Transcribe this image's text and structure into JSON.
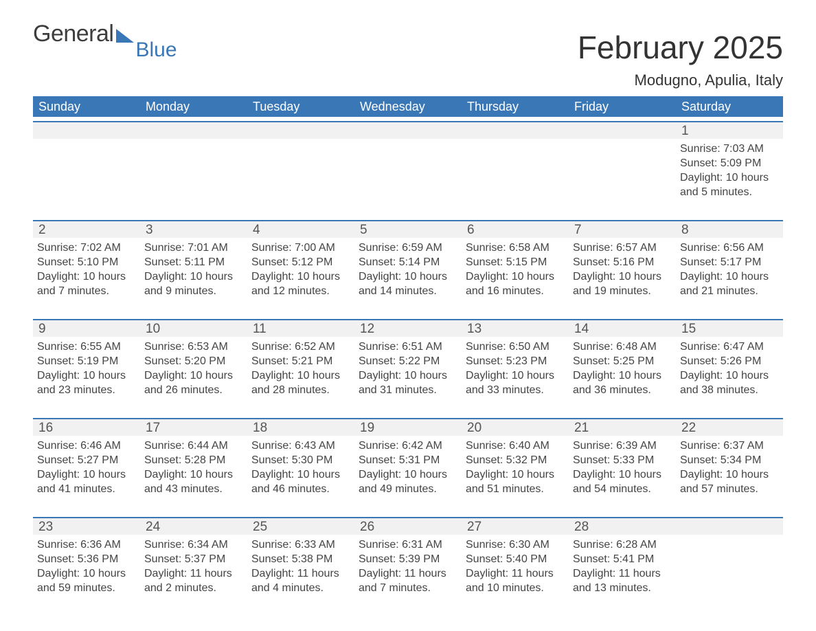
{
  "brand": {
    "part1": "General",
    "part2": "Blue"
  },
  "title": "February 2025",
  "location": "Modugno, Apulia, Italy",
  "colors": {
    "accent": "#3a77b7",
    "header_text": "#ffffff",
    "cell_bg": "#f1f1f1",
    "text": "#333333"
  },
  "typography": {
    "title_fontsize": 46,
    "location_fontsize": 22,
    "dow_fontsize": 18,
    "daynum_fontsize": 19,
    "body_fontsize": 16,
    "font_family": "Arial"
  },
  "calendar": {
    "days_of_week": [
      "Sunday",
      "Monday",
      "Tuesday",
      "Wednesday",
      "Thursday",
      "Friday",
      "Saturday"
    ],
    "start_weekday_index": 6,
    "weeks": [
      [
        null,
        null,
        null,
        null,
        null,
        null,
        {
          "n": "1",
          "sunrise": "7:03 AM",
          "sunset": "5:09 PM",
          "daylight": "10 hours and 5 minutes."
        }
      ],
      [
        {
          "n": "2",
          "sunrise": "7:02 AM",
          "sunset": "5:10 PM",
          "daylight": "10 hours and 7 minutes."
        },
        {
          "n": "3",
          "sunrise": "7:01 AM",
          "sunset": "5:11 PM",
          "daylight": "10 hours and 9 minutes."
        },
        {
          "n": "4",
          "sunrise": "7:00 AM",
          "sunset": "5:12 PM",
          "daylight": "10 hours and 12 minutes."
        },
        {
          "n": "5",
          "sunrise": "6:59 AM",
          "sunset": "5:14 PM",
          "daylight": "10 hours and 14 minutes."
        },
        {
          "n": "6",
          "sunrise": "6:58 AM",
          "sunset": "5:15 PM",
          "daylight": "10 hours and 16 minutes."
        },
        {
          "n": "7",
          "sunrise": "6:57 AM",
          "sunset": "5:16 PM",
          "daylight": "10 hours and 19 minutes."
        },
        {
          "n": "8",
          "sunrise": "6:56 AM",
          "sunset": "5:17 PM",
          "daylight": "10 hours and 21 minutes."
        }
      ],
      [
        {
          "n": "9",
          "sunrise": "6:55 AM",
          "sunset": "5:19 PM",
          "daylight": "10 hours and 23 minutes."
        },
        {
          "n": "10",
          "sunrise": "6:53 AM",
          "sunset": "5:20 PM",
          "daylight": "10 hours and 26 minutes."
        },
        {
          "n": "11",
          "sunrise": "6:52 AM",
          "sunset": "5:21 PM",
          "daylight": "10 hours and 28 minutes."
        },
        {
          "n": "12",
          "sunrise": "6:51 AM",
          "sunset": "5:22 PM",
          "daylight": "10 hours and 31 minutes."
        },
        {
          "n": "13",
          "sunrise": "6:50 AM",
          "sunset": "5:23 PM",
          "daylight": "10 hours and 33 minutes."
        },
        {
          "n": "14",
          "sunrise": "6:48 AM",
          "sunset": "5:25 PM",
          "daylight": "10 hours and 36 minutes."
        },
        {
          "n": "15",
          "sunrise": "6:47 AM",
          "sunset": "5:26 PM",
          "daylight": "10 hours and 38 minutes."
        }
      ],
      [
        {
          "n": "16",
          "sunrise": "6:46 AM",
          "sunset": "5:27 PM",
          "daylight": "10 hours and 41 minutes."
        },
        {
          "n": "17",
          "sunrise": "6:44 AM",
          "sunset": "5:28 PM",
          "daylight": "10 hours and 43 minutes."
        },
        {
          "n": "18",
          "sunrise": "6:43 AM",
          "sunset": "5:30 PM",
          "daylight": "10 hours and 46 minutes."
        },
        {
          "n": "19",
          "sunrise": "6:42 AM",
          "sunset": "5:31 PM",
          "daylight": "10 hours and 49 minutes."
        },
        {
          "n": "20",
          "sunrise": "6:40 AM",
          "sunset": "5:32 PM",
          "daylight": "10 hours and 51 minutes."
        },
        {
          "n": "21",
          "sunrise": "6:39 AM",
          "sunset": "5:33 PM",
          "daylight": "10 hours and 54 minutes."
        },
        {
          "n": "22",
          "sunrise": "6:37 AM",
          "sunset": "5:34 PM",
          "daylight": "10 hours and 57 minutes."
        }
      ],
      [
        {
          "n": "23",
          "sunrise": "6:36 AM",
          "sunset": "5:36 PM",
          "daylight": "10 hours and 59 minutes."
        },
        {
          "n": "24",
          "sunrise": "6:34 AM",
          "sunset": "5:37 PM",
          "daylight": "11 hours and 2 minutes."
        },
        {
          "n": "25",
          "sunrise": "6:33 AM",
          "sunset": "5:38 PM",
          "daylight": "11 hours and 4 minutes."
        },
        {
          "n": "26",
          "sunrise": "6:31 AM",
          "sunset": "5:39 PM",
          "daylight": "11 hours and 7 minutes."
        },
        {
          "n": "27",
          "sunrise": "6:30 AM",
          "sunset": "5:40 PM",
          "daylight": "11 hours and 10 minutes."
        },
        {
          "n": "28",
          "sunrise": "6:28 AM",
          "sunset": "5:41 PM",
          "daylight": "11 hours and 13 minutes."
        },
        null
      ]
    ],
    "labels": {
      "sunrise_prefix": "Sunrise: ",
      "sunset_prefix": "Sunset: ",
      "daylight_prefix": "Daylight: "
    }
  }
}
